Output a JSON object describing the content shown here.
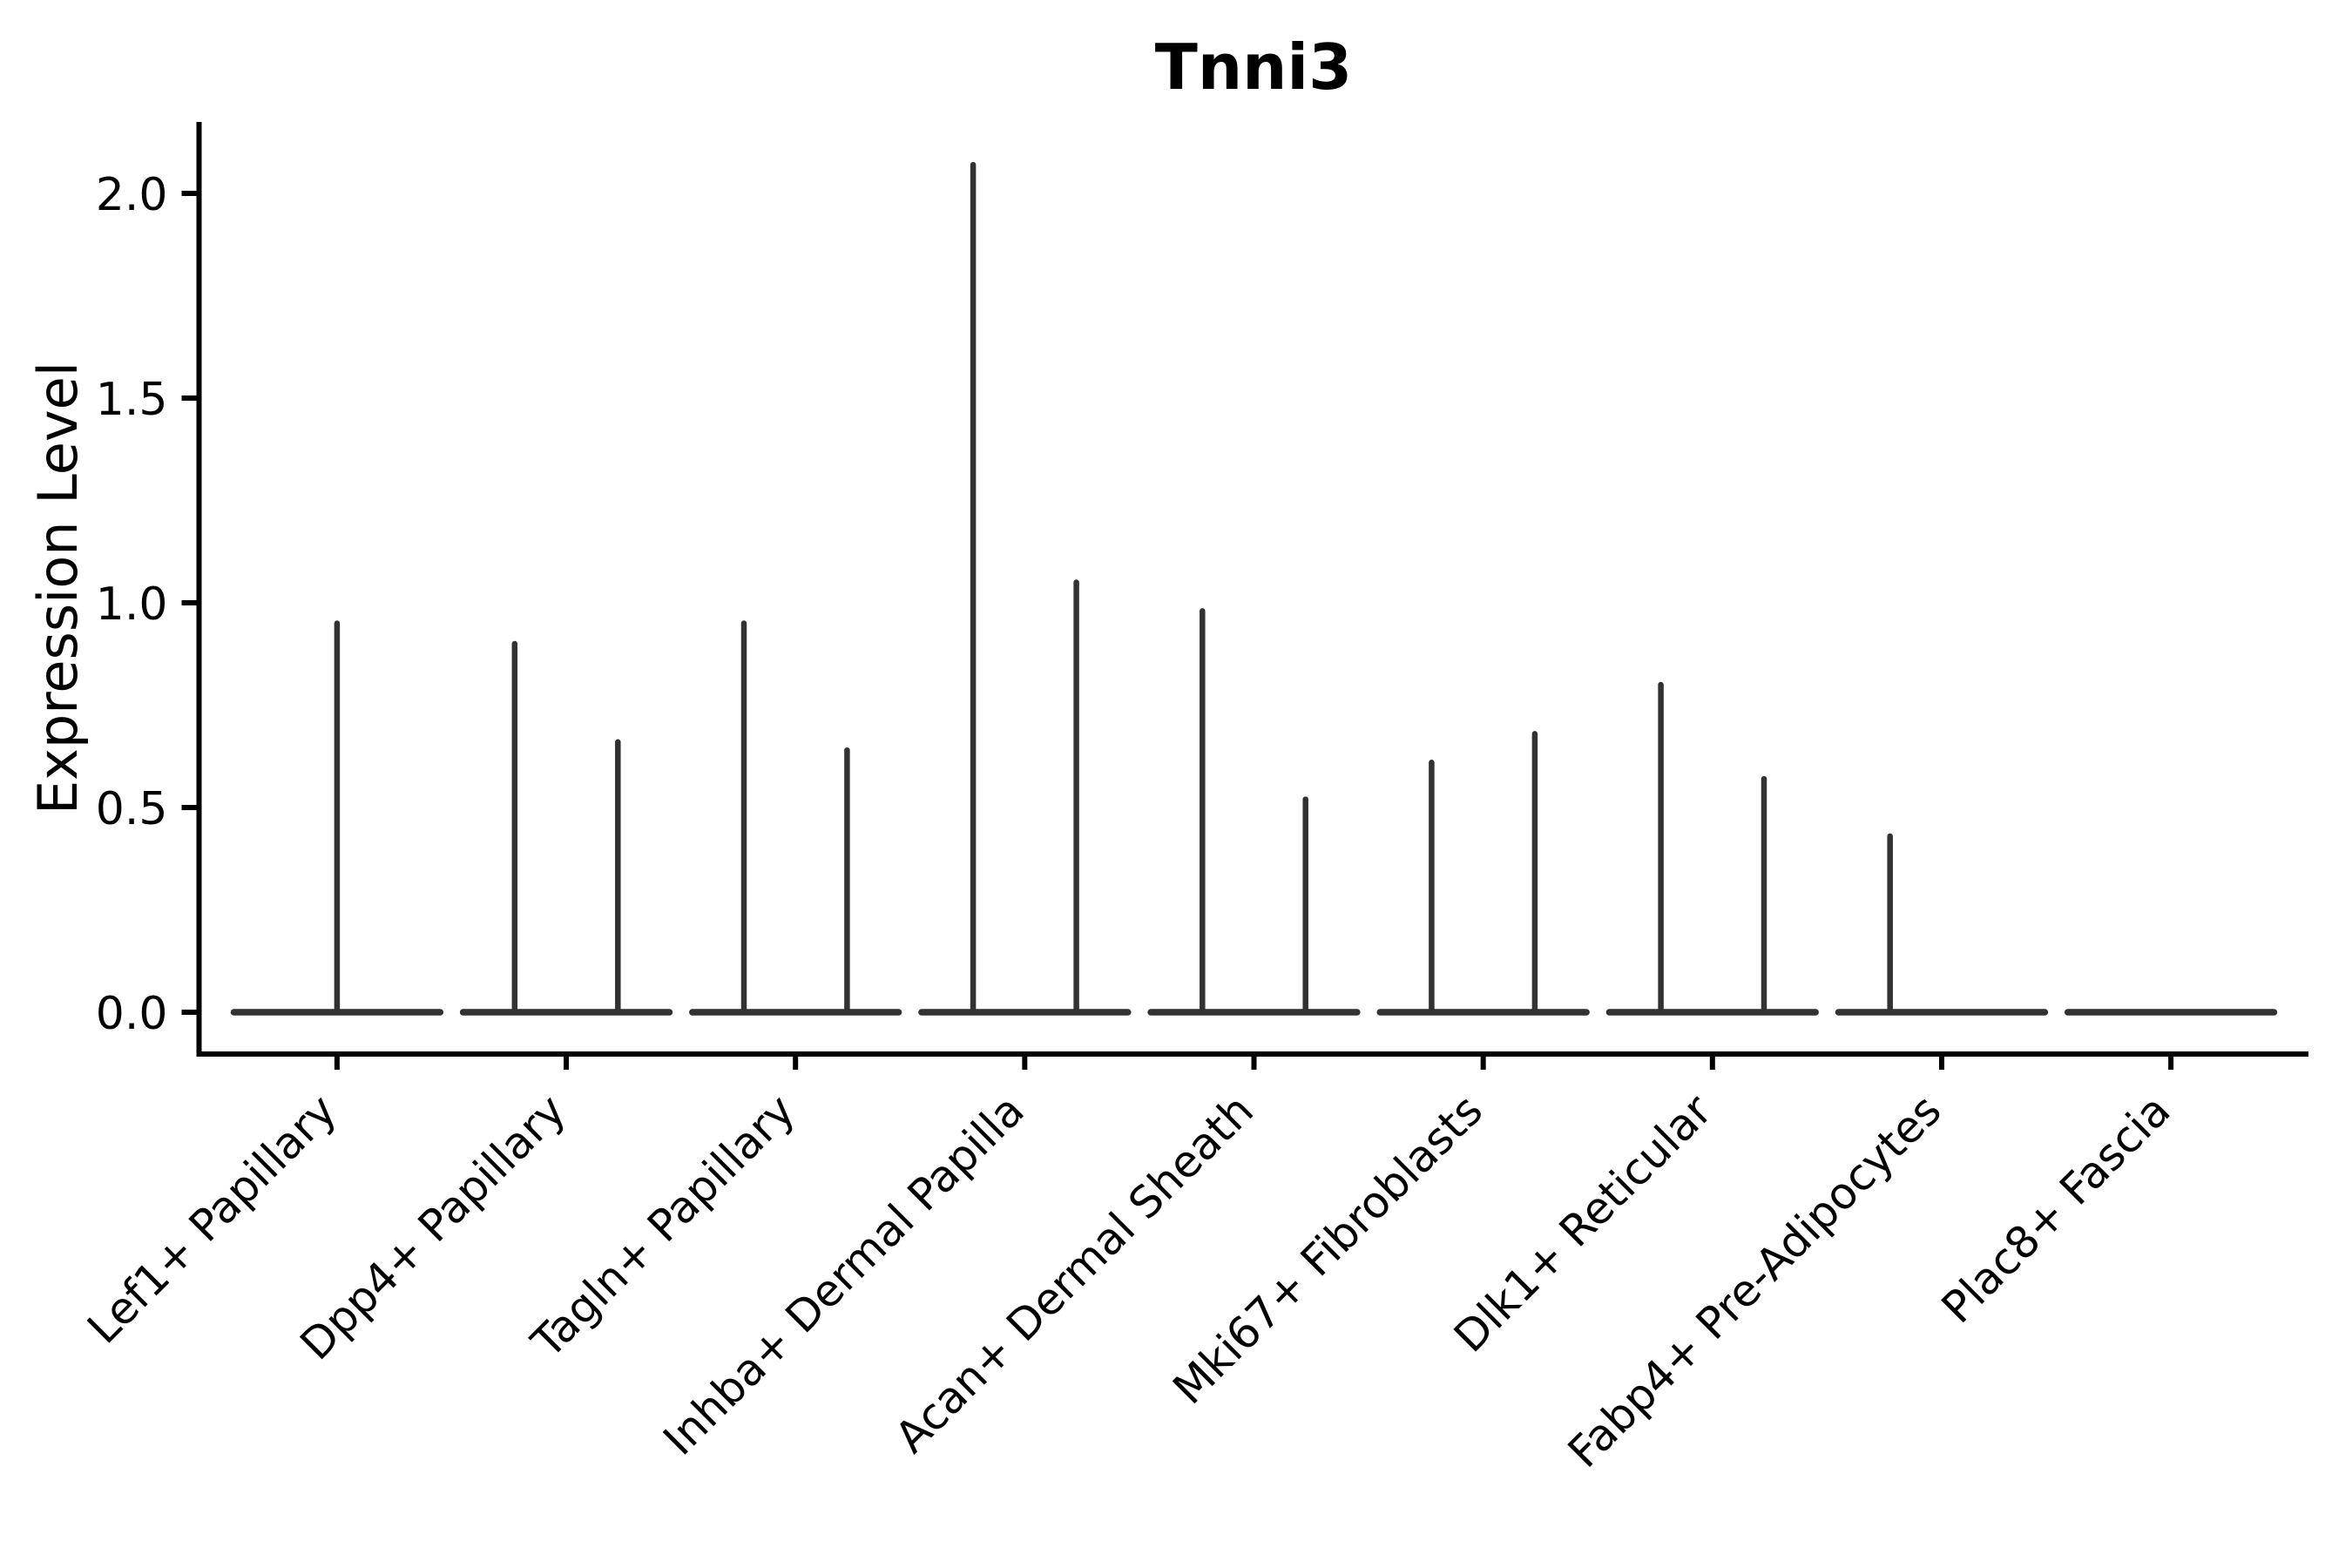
{
  "figure": {
    "background_color": "#ffffff",
    "axis_color": "#000000",
    "violin_color": "#323232"
  },
  "chart_data": {
    "type": "violin",
    "title": "Tnni3",
    "xlabel": "",
    "ylabel": "Expression Level",
    "ylim": [
      -0.1035,
      2.1735
    ],
    "yticks": [
      0.0,
      0.5,
      1.0,
      1.5,
      2.0
    ],
    "ytick_labels": [
      "0.0",
      "0.5",
      "1.0",
      "1.5",
      "2.0"
    ],
    "grid": false,
    "legend": false,
    "x_tick_rotation_deg": 45,
    "violin_width": 0.9,
    "split_offset": 0.225,
    "categories": [
      "Lef1+ Papillary",
      "Dpp4+ Papillary",
      "Tagln+ Papillary",
      "Inhba+ Dermal Papilla",
      "Acan+ Dermal Sheath",
      "Mki67+ Fibroblasts",
      "Dlk1+ Reticular",
      "Fabp4+ Pre-Adipocytes",
      "Plac8+ Fascia"
    ],
    "violins": [
      {
        "category": "Lef1+ Papillary",
        "bulk_at": 0.0,
        "spikes": [
          {
            "offset": 0.0,
            "max": 0.95
          }
        ]
      },
      {
        "category": "Dpp4+ Papillary",
        "bulk_at": 0.0,
        "spikes": [
          {
            "offset": -0.225,
            "max": 0.9
          },
          {
            "offset": 0.225,
            "max": 0.66
          }
        ]
      },
      {
        "category": "Tagln+ Papillary",
        "bulk_at": 0.0,
        "spikes": [
          {
            "offset": -0.225,
            "max": 0.95
          },
          {
            "offset": 0.225,
            "max": 0.64
          }
        ]
      },
      {
        "category": "Inhba+ Dermal Papilla",
        "bulk_at": 0.0,
        "spikes": [
          {
            "offset": -0.225,
            "max": 2.07
          },
          {
            "offset": 0.225,
            "max": 1.05
          }
        ]
      },
      {
        "category": "Acan+ Dermal Sheath",
        "bulk_at": 0.0,
        "spikes": [
          {
            "offset": -0.225,
            "max": 0.98
          },
          {
            "offset": 0.225,
            "max": 0.52
          }
        ]
      },
      {
        "category": "Mki67+ Fibroblasts",
        "bulk_at": 0.0,
        "spikes": [
          {
            "offset": -0.225,
            "max": 0.61
          },
          {
            "offset": 0.225,
            "max": 0.68
          }
        ]
      },
      {
        "category": "Dlk1+ Reticular",
        "bulk_at": 0.0,
        "spikes": [
          {
            "offset": -0.225,
            "max": 0.8
          },
          {
            "offset": 0.225,
            "max": 0.57
          }
        ]
      },
      {
        "category": "Fabp4+ Pre-Adipocytes",
        "bulk_at": 0.0,
        "spikes": [
          {
            "offset": -0.225,
            "max": 0.43
          }
        ]
      },
      {
        "category": "Plac8+ Fascia",
        "bulk_at": 0.0,
        "spikes": []
      }
    ]
  }
}
